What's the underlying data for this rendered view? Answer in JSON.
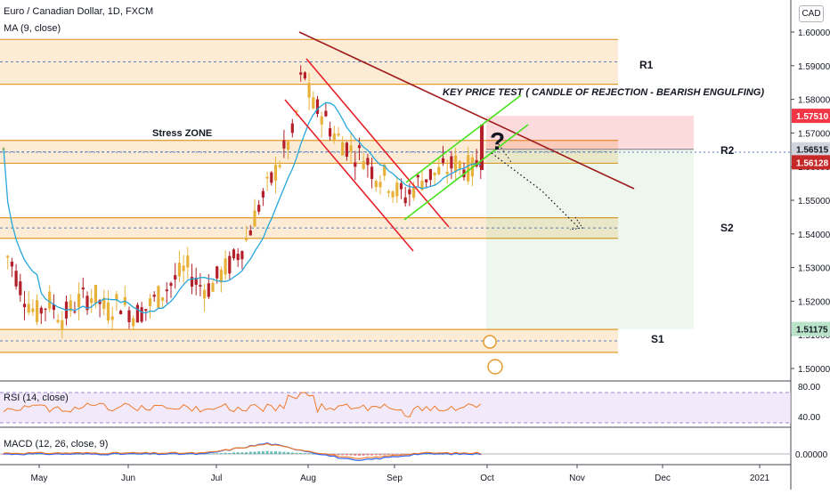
{
  "header": {
    "symbol_line": "Euro / Canadian Dollar, 1D, FXCM",
    "indicator_line": "MA (9, close)",
    "currency_button": "CAD"
  },
  "panels": {
    "rsi_label": "RSI (14, close)",
    "macd_label": "MACD (12, 26, close, 9)"
  },
  "chart_data": [
    {
      "type": "candlestick",
      "title": "Euro / Canadian Dollar, 1D, FXCM",
      "price_axis": {
        "ticks": [
          "1.60000",
          "1.59000",
          "1.58000",
          "1.57000",
          "1.56000",
          "1.55000",
          "1.54000",
          "1.53000",
          "1.52000",
          "1.51000",
          "1.50000"
        ],
        "range": [
          1.4975,
          1.604
        ]
      },
      "time_axis": {
        "ticks": [
          "May",
          "Jun",
          "Jul",
          "Aug",
          "Sep",
          "Oct",
          "Nov",
          "Dec",
          "2021"
        ]
      },
      "price_badges": [
        {
          "value": "1.57510",
          "bg": "#f23645",
          "fg": "#ffffff"
        },
        {
          "value": "1.56515",
          "bg": "#d1d4dc",
          "fg": "#131722"
        },
        {
          "value": "1.56128",
          "bg": "#c62828",
          "fg": "#ffffff"
        },
        {
          "value": "1.51175",
          "bg": "#b9e4c9",
          "fg": "#131722"
        }
      ],
      "annotations": [
        {
          "text": "R1"
        },
        {
          "text": "R2"
        },
        {
          "text": "S2"
        },
        {
          "text": "S1"
        },
        {
          "text": "Stress ZONE"
        },
        {
          "text": "KEY PRICE TEST ( CANDLE OF REJECTION - BEARISH ENGULFING)"
        },
        {
          "text": "?"
        }
      ],
      "zones": [
        {
          "name": "R1",
          "from": 1.5845,
          "to": 1.5978
        },
        {
          "name": "R2",
          "from": 1.561,
          "to": 1.5678
        },
        {
          "name": "S2",
          "from": 1.5387,
          "to": 1.5448
        },
        {
          "name": "S1",
          "from": 1.5048,
          "to": 1.5116
        }
      ],
      "position_box": {
        "entry": 1.56515,
        "stop": 1.5751,
        "target": 1.51175
      },
      "colors": {
        "up": "#e8b23a",
        "down": "#b3202a",
        "ma": "#26a7dc",
        "zone_fill": "#fbe5c8",
        "zone_line": "#e39a2a",
        "green_channel": "#46e21c",
        "red_channel": "#e8202a",
        "trendline": "#9e1b1b"
      },
      "moving_average": "MA (9, close)"
    },
    {
      "type": "line",
      "title": "RSI (14, close)",
      "axis_ticks": [
        "80.00",
        "40.00"
      ],
      "band": [
        30,
        70
      ],
      "color": "#f07a2a"
    },
    {
      "type": "bar",
      "title": "MACD (12, 26, close, 9)",
      "axis_ticks": [
        "0.00000"
      ],
      "colors": {
        "macd": "#2962ff",
        "signal": "#f07a2a",
        "hist_up": "#26a69a",
        "hist_down": "#ef5350"
      }
    }
  ]
}
